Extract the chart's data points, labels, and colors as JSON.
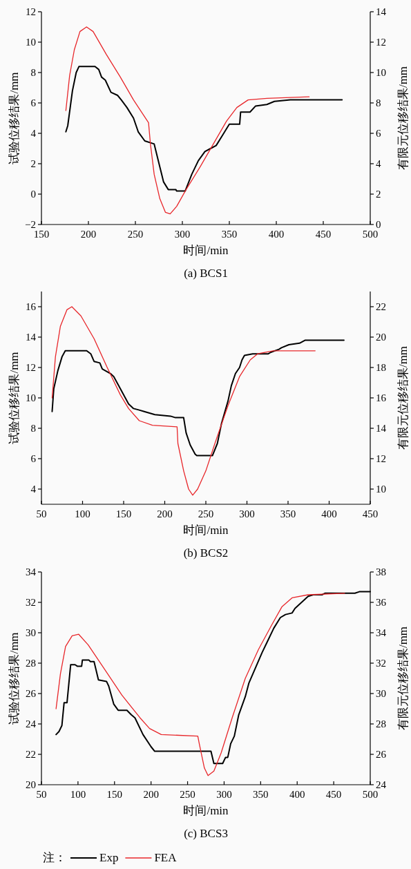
{
  "chart_data": [
    {
      "type": "line",
      "title": "(a) BCS1",
      "xlabel": "时间/min",
      "ylabel": "试验位移结果/mm",
      "y2label": "有限元位移结果/mm",
      "xlim": [
        150,
        500
      ],
      "xticks": [
        150,
        200,
        250,
        300,
        350,
        400,
        450,
        500
      ],
      "ylim": [
        -2,
        12
      ],
      "yticks": [
        {
          "value": -2,
          "label": "−2"
        },
        0,
        2,
        4,
        6,
        8,
        10,
        12
      ],
      "y2lim": [
        0,
        14
      ],
      "y2ticks": [
        0,
        2,
        4,
        6,
        8,
        10,
        12,
        14
      ],
      "series": [
        {
          "color": "#000000",
          "x": [
            176,
            178,
            183,
            187,
            190,
            207,
            211,
            214,
            218,
            224,
            231,
            235,
            241,
            248,
            253,
            260,
            270,
            276,
            280,
            285,
            293,
            294,
            303,
            310,
            317,
            324,
            330,
            336,
            343,
            350,
            361,
            362,
            372,
            378,
            390,
            398,
            415,
            470
          ],
          "values": [
            4.1,
            4.5,
            6.8,
            8.0,
            8.4,
            8.4,
            8.2,
            7.7,
            7.5,
            6.7,
            6.5,
            6.2,
            5.7,
            5.0,
            4.1,
            3.5,
            3.3,
            1.8,
            0.8,
            0.3,
            0.3,
            0.2,
            0.2,
            1.3,
            2.2,
            2.8,
            3.0,
            3.2,
            3.9,
            4.6,
            4.6,
            5.4,
            5.4,
            5.8,
            5.9,
            6.1,
            6.2,
            6.2
          ]
        },
        {
          "color": "#e8262a",
          "axis": "y2",
          "x": [
            176,
            180,
            185,
            191,
            198,
            205,
            219,
            234,
            248,
            264,
            266,
            270,
            276,
            282,
            287,
            294,
            304,
            319,
            333,
            347,
            358,
            370,
            390,
            435
          ],
          "values": [
            7.5,
            9.8,
            11.5,
            12.7,
            13.0,
            12.7,
            11.2,
            9.7,
            8.2,
            6.7,
            5.3,
            3.3,
            1.7,
            0.8,
            0.7,
            1.2,
            2.3,
            3.8,
            5.3,
            6.8,
            7.7,
            8.2,
            8.3,
            8.4
          ]
        }
      ]
    },
    {
      "type": "line",
      "title": "(b) BCS2",
      "xlabel": "时间/min",
      "ylabel": "试验位移结果/mm",
      "y2label": "有限元位移结果/mm",
      "xlim": [
        50,
        450
      ],
      "xticks": [
        50,
        100,
        150,
        200,
        250,
        300,
        350,
        400,
        450
      ],
      "ylim": [
        3,
        17
      ],
      "yticks": [
        4,
        6,
        8,
        10,
        12,
        14,
        16
      ],
      "y2lim": [
        9,
        23
      ],
      "y2ticks": [
        10,
        12,
        14,
        16,
        18,
        20,
        22
      ],
      "series": [
        {
          "color": "#000000",
          "x": [
            63,
            65,
            70,
            75,
            79,
            105,
            110,
            114,
            121,
            124,
            134,
            138,
            146,
            156,
            162,
            169,
            175,
            188,
            207,
            213,
            223,
            226,
            231,
            237,
            239,
            258,
            264,
            269,
            277,
            281,
            286,
            291,
            294,
            297,
            307,
            326,
            329,
            339,
            342,
            351,
            364,
            371,
            418
          ],
          "values": [
            9.1,
            10.6,
            11.8,
            12.7,
            13.1,
            13.1,
            12.9,
            12.4,
            12.3,
            11.9,
            11.6,
            11.4,
            10.6,
            9.6,
            9.3,
            9.2,
            9.1,
            8.9,
            8.8,
            8.7,
            8.7,
            7.7,
            6.9,
            6.3,
            6.2,
            6.2,
            7.0,
            8.3,
            9.8,
            10.8,
            11.6,
            12.0,
            12.5,
            12.8,
            12.9,
            12.9,
            13.0,
            13.2,
            13.3,
            13.5,
            13.6,
            13.8,
            13.8
          ]
        },
        {
          "color": "#e8262a",
          "axis": "y2",
          "x": [
            63,
            67,
            73,
            81,
            87,
            98,
            114,
            130,
            146,
            156,
            169,
            185,
            215,
            216,
            223,
            229,
            234,
            240,
            250,
            261,
            277,
            291,
            304,
            313,
            332,
            383
          ],
          "values": [
            16.0,
            18.7,
            20.7,
            21.8,
            22.0,
            21.4,
            19.9,
            18.0,
            16.2,
            15.3,
            14.5,
            14.2,
            14.1,
            13.0,
            11.2,
            10.0,
            9.6,
            10.0,
            11.2,
            13.0,
            15.5,
            17.4,
            18.5,
            18.9,
            19.1,
            19.1
          ]
        }
      ]
    },
    {
      "type": "line",
      "title": "(c) BCS3",
      "xlabel": "时间/min",
      "ylabel": "试验位移结果/mm",
      "y2label": "有限元位移结果/mm",
      "xlim": [
        50,
        500
      ],
      "xticks": [
        50,
        100,
        150,
        200,
        250,
        300,
        350,
        400,
        450,
        500
      ],
      "ylim": [
        20,
        34
      ],
      "yticks": [
        20,
        22,
        24,
        26,
        28,
        30,
        32,
        34
      ],
      "y2lim": [
        24,
        38
      ],
      "y2ticks": [
        24,
        26,
        28,
        30,
        32,
        34,
        36,
        38
      ],
      "legend": "bottom",
      "legend_title": "注：",
      "series": [
        {
          "name": "Exp",
          "color": "#000000",
          "x": [
            70,
            74,
            78,
            81,
            85,
            90,
            96,
            99,
            105,
            106,
            115,
            117,
            122,
            128,
            139,
            142,
            149,
            155,
            167,
            173,
            178,
            189,
            200,
            205,
            235,
            282,
            286,
            298,
            302,
            305,
            309,
            314,
            320,
            329,
            334,
            343,
            352,
            359,
            368,
            377,
            384,
            393,
            397,
            406,
            415,
            422,
            434,
            438,
            479,
            485,
            500
          ],
          "values": [
            23.3,
            23.5,
            23.9,
            25.4,
            25.4,
            27.9,
            27.9,
            27.8,
            27.8,
            28.2,
            28.2,
            28.1,
            28.1,
            26.9,
            26.8,
            26.5,
            25.3,
            24.9,
            24.9,
            24.6,
            24.4,
            23.3,
            22.5,
            22.2,
            22.2,
            22.2,
            21.4,
            21.4,
            21.8,
            21.8,
            22.7,
            23.2,
            24.6,
            25.8,
            26.7,
            27.7,
            28.7,
            29.4,
            30.3,
            31.0,
            31.2,
            31.3,
            31.6,
            32.0,
            32.4,
            32.5,
            32.5,
            32.6,
            32.6,
            32.7,
            32.7
          ]
        },
        {
          "name": "FEA",
          "color": "#e8262a",
          "axis": "y2",
          "x": [
            70,
            76,
            83,
            92,
            101,
            114,
            135,
            160,
            185,
            198,
            214,
            264,
            266,
            273,
            278,
            286,
            296,
            311,
            329,
            347,
            365,
            379,
            393,
            415,
            465
          ],
          "values": [
            29.0,
            31.3,
            33.1,
            33.8,
            33.9,
            33.2,
            31.7,
            29.9,
            28.4,
            27.7,
            27.3,
            27.2,
            26.7,
            25.1,
            24.6,
            24.9,
            26.1,
            28.4,
            31.0,
            32.9,
            34.5,
            35.7,
            36.3,
            36.5,
            36.6
          ]
        }
      ]
    }
  ]
}
